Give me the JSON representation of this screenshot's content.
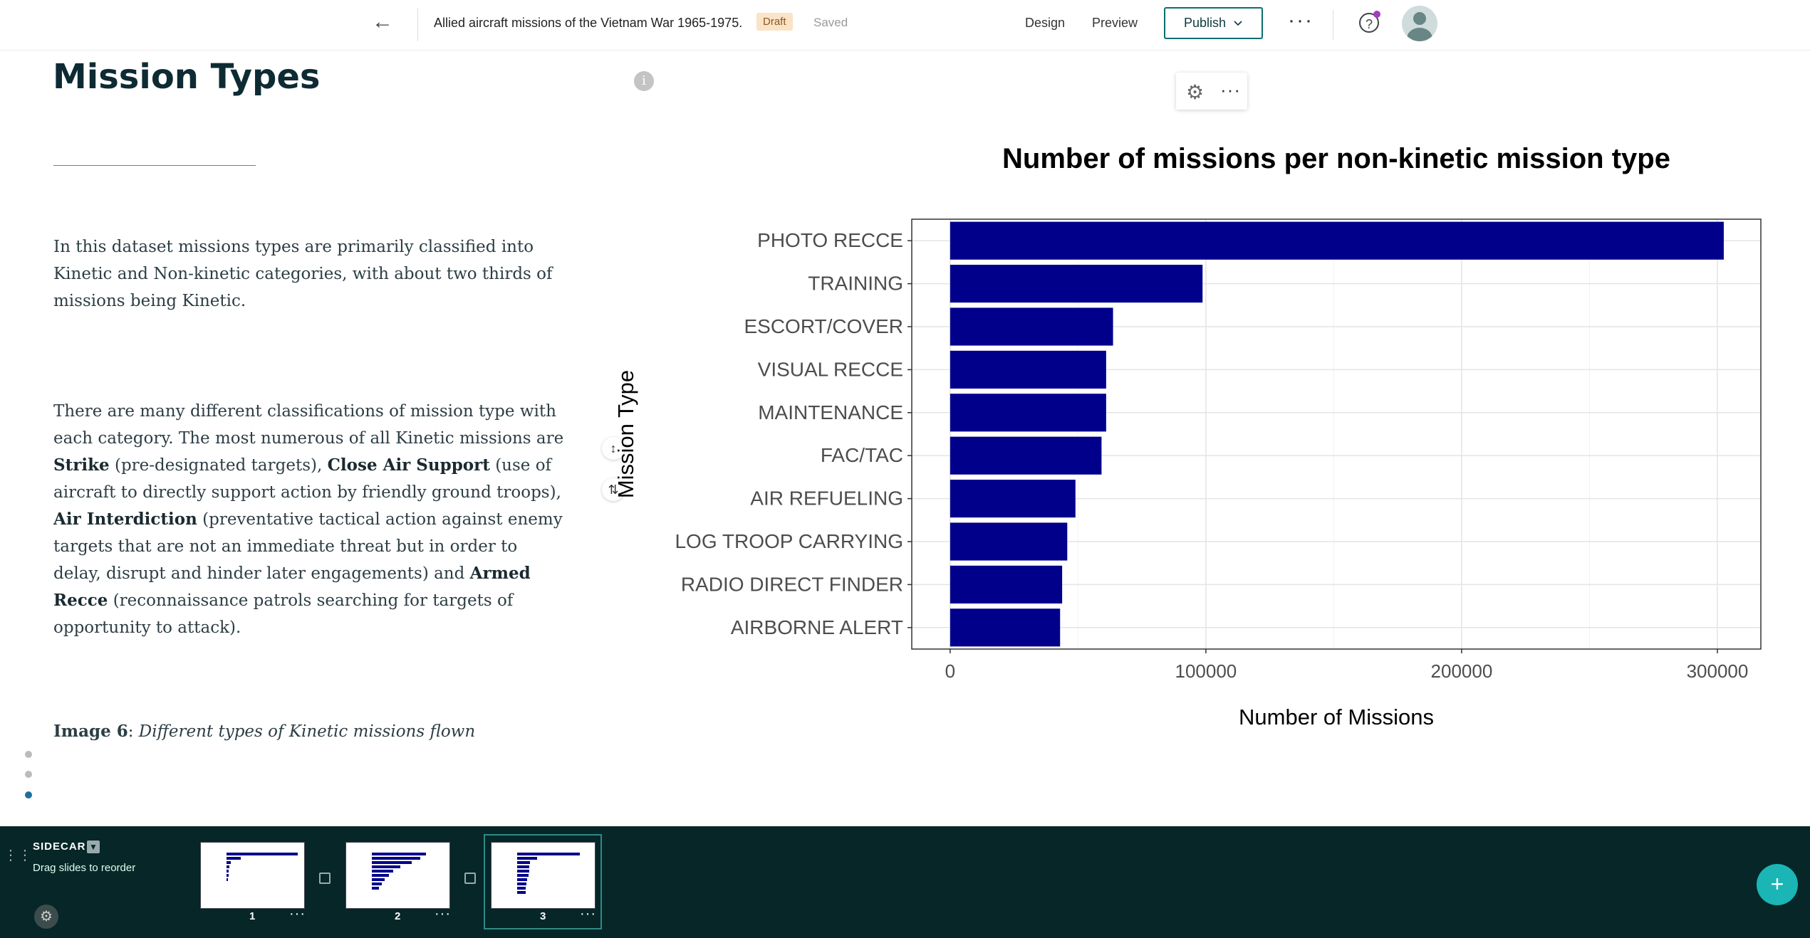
{
  "topbar": {
    "back_icon": "arrow-left-icon",
    "story_title": "Allied aircraft missions of the Vietnam War 1965-1975.",
    "status_badge": "Draft",
    "save_status": "Saved",
    "design": "Design",
    "preview": "Preview",
    "publish": "Publish",
    "more": "···",
    "help": "?"
  },
  "content": {
    "heading": "Mission Types",
    "para1": "In this dataset missions types are primarily classified into Kinetic and Non-kinetic categories, with about two thirds of missions being Kinetic.",
    "para2": [
      {
        "t": "There are many different classifications of mission type with each category. The most numerous of all Kinetic missions are ",
        "b": false
      },
      {
        "t": "Strike",
        "b": true
      },
      {
        "t": " (pre-designated targets), ",
        "b": false
      },
      {
        "t": "Close Air Support",
        "b": true
      },
      {
        "t": " (use of aircraft to directly support action by friendly ground troops), ",
        "b": false
      },
      {
        "t": "Air Interdiction",
        "b": true
      },
      {
        "t": " (preventative tactical action against enemy targets that are not an immediate threat but in order to delay, disrupt and hinder later engagements) and ",
        "b": false
      },
      {
        "t": "Armed Recce",
        "b": true
      },
      {
        "t": " (reconnaissance patrols searching for targets of opportunity to attack).",
        "b": false
      }
    ],
    "caption_label": "Image 6",
    "caption_text": "Different types of Kinetic missions flown"
  },
  "chart_data": {
    "type": "bar",
    "orientation": "horizontal",
    "title": "Number of missions per non-kinetic mission type",
    "xlabel": "Number of Missions",
    "ylabel": "Mission Type",
    "categories": [
      "PHOTO RECCE",
      "TRAINING",
      "ESCORT/COVER",
      "VISUAL RECCE",
      "MAINTENANCE",
      "FAC/TAC",
      "AIR REFUELING",
      "LOG TROOP CARRYING",
      "RADIO DIRECT FINDER",
      "AIRBORNE ALERT"
    ],
    "values": [
      302500,
      98700,
      63700,
      61000,
      61000,
      59200,
      49000,
      45800,
      43800,
      43000
    ],
    "xlim": [
      -15000,
      317000
    ],
    "xticks": [
      0,
      100000,
      200000,
      300000
    ],
    "tick_labels": [
      "0",
      "100000",
      "200000",
      "300000"
    ],
    "bar_color": "#00008b",
    "grid": true
  },
  "bottom": {
    "sidecar": "SIDECAR",
    "hint": "Drag slides to reorder",
    "slides": [
      "1",
      "2",
      "3"
    ],
    "more": "···"
  },
  "colors": {
    "accent": "#0b6e70",
    "footer": "#062628",
    "add": "#1bb5b5"
  }
}
